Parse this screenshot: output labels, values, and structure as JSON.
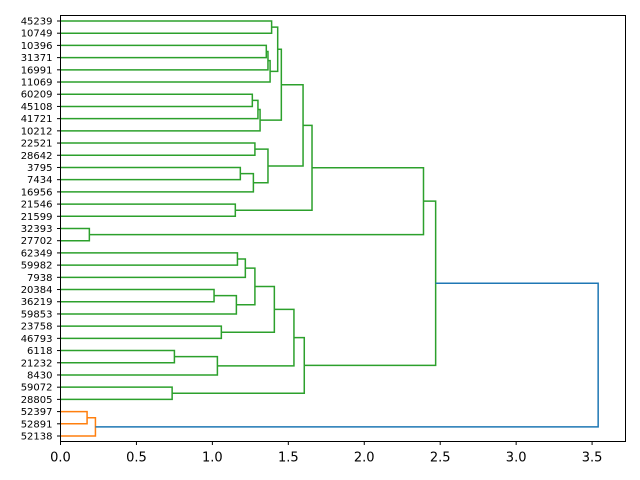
{
  "chart_data": {
    "type": "dendrogram",
    "orientation": "right",
    "title": "",
    "xlabel": "",
    "ylabel": "",
    "xlim": [
      0,
      3.72
    ],
    "xticks": [
      "0.0",
      "0.5",
      "1.0",
      "1.5",
      "2.0",
      "2.5",
      "3.0",
      "3.5"
    ],
    "xtick_values": [
      0,
      0.5,
      1.0,
      1.5,
      2.0,
      2.5,
      3.0,
      3.5
    ],
    "grid": false,
    "colors": {
      "cluster_a": "#2ca02c",
      "cluster_b": "#ff7f0e",
      "above_threshold": "#1f77b4"
    },
    "leaves": [
      "45239",
      "10749",
      "10396",
      "31371",
      "16991",
      "11069",
      "60209",
      "45108",
      "41721",
      "10212",
      "22521",
      "28642",
      "3795",
      "7434",
      "16956",
      "21546",
      "21599",
      "32393",
      "27702",
      "62349",
      "59982",
      "7938",
      "20384",
      "36219",
      "59853",
      "23758",
      "46793",
      "6118",
      "21232",
      "8430",
      "59072",
      "28805",
      "52397",
      "52891",
      "52138"
    ],
    "merges": [
      {
        "id": 35,
        "a": 0,
        "b": 1,
        "h": 1.39,
        "c": "cluster_a"
      },
      {
        "id": 36,
        "a": 2,
        "b": 3,
        "h": 1.355,
        "c": "cluster_a"
      },
      {
        "id": 37,
        "a": 36,
        "b": 4,
        "h": 1.366,
        "c": "cluster_a"
      },
      {
        "id": 38,
        "a": 37,
        "b": 5,
        "h": 1.38,
        "c": "cluster_a"
      },
      {
        "id": 39,
        "a": 35,
        "b": 38,
        "h": 1.43,
        "c": "cluster_a"
      },
      {
        "id": 40,
        "a": 6,
        "b": 7,
        "h": 1.263,
        "c": "cluster_a"
      },
      {
        "id": 41,
        "a": 40,
        "b": 8,
        "h": 1.3,
        "c": "cluster_a"
      },
      {
        "id": 42,
        "a": 41,
        "b": 9,
        "h": 1.314,
        "c": "cluster_a"
      },
      {
        "id": 43,
        "a": 39,
        "b": 42,
        "h": 1.454,
        "c": "cluster_a"
      },
      {
        "id": 44,
        "a": 10,
        "b": 11,
        "h": 1.28,
        "c": "cluster_a"
      },
      {
        "id": 45,
        "a": 12,
        "b": 13,
        "h": 1.184,
        "c": "cluster_a"
      },
      {
        "id": 46,
        "a": 45,
        "b": 14,
        "h": 1.27,
        "c": "cluster_a"
      },
      {
        "id": 47,
        "a": 44,
        "b": 46,
        "h": 1.366,
        "c": "cluster_a"
      },
      {
        "id": 48,
        "a": 43,
        "b": 47,
        "h": 1.597,
        "c": "cluster_a"
      },
      {
        "id": 49,
        "a": 15,
        "b": 16,
        "h": 1.151,
        "c": "cluster_a"
      },
      {
        "id": 50,
        "a": 48,
        "b": 49,
        "h": 1.656,
        "c": "cluster_a"
      },
      {
        "id": 51,
        "a": 17,
        "b": 18,
        "h": 0.19,
        "c": "cluster_a"
      },
      {
        "id": 52,
        "a": 50,
        "b": 51,
        "h": 2.39,
        "c": "cluster_a"
      },
      {
        "id": 53,
        "a": 19,
        "b": 20,
        "h": 1.165,
        "c": "cluster_a"
      },
      {
        "id": 54,
        "a": 53,
        "b": 21,
        "h": 1.217,
        "c": "cluster_a"
      },
      {
        "id": 55,
        "a": 22,
        "b": 23,
        "h": 1.011,
        "c": "cluster_a"
      },
      {
        "id": 56,
        "a": 55,
        "b": 24,
        "h": 1.158,
        "c": "cluster_a"
      },
      {
        "id": 57,
        "a": 54,
        "b": 56,
        "h": 1.28,
        "c": "cluster_a"
      },
      {
        "id": 58,
        "a": 25,
        "b": 26,
        "h": 1.059,
        "c": "cluster_a"
      },
      {
        "id": 59,
        "a": 57,
        "b": 58,
        "h": 1.408,
        "c": "cluster_a"
      },
      {
        "id": 60,
        "a": 27,
        "b": 28,
        "h": 0.75,
        "c": "cluster_a"
      },
      {
        "id": 61,
        "a": 60,
        "b": 29,
        "h": 1.033,
        "c": "cluster_a"
      },
      {
        "id": 62,
        "a": 59,
        "b": 61,
        "h": 1.537,
        "c": "cluster_a"
      },
      {
        "id": 63,
        "a": 30,
        "b": 31,
        "h": 0.735,
        "c": "cluster_a"
      },
      {
        "id": 64,
        "a": 62,
        "b": 63,
        "h": 1.605,
        "c": "cluster_a"
      },
      {
        "id": 65,
        "a": 52,
        "b": 64,
        "h": 2.47,
        "c": "cluster_a"
      },
      {
        "id": 66,
        "a": 32,
        "b": 33,
        "h": 0.175,
        "c": "cluster_b"
      },
      {
        "id": 67,
        "a": 66,
        "b": 34,
        "h": 0.23,
        "c": "cluster_b"
      },
      {
        "id": 68,
        "a": 65,
        "b": 67,
        "h": 3.54,
        "c": "above_threshold"
      }
    ]
  }
}
